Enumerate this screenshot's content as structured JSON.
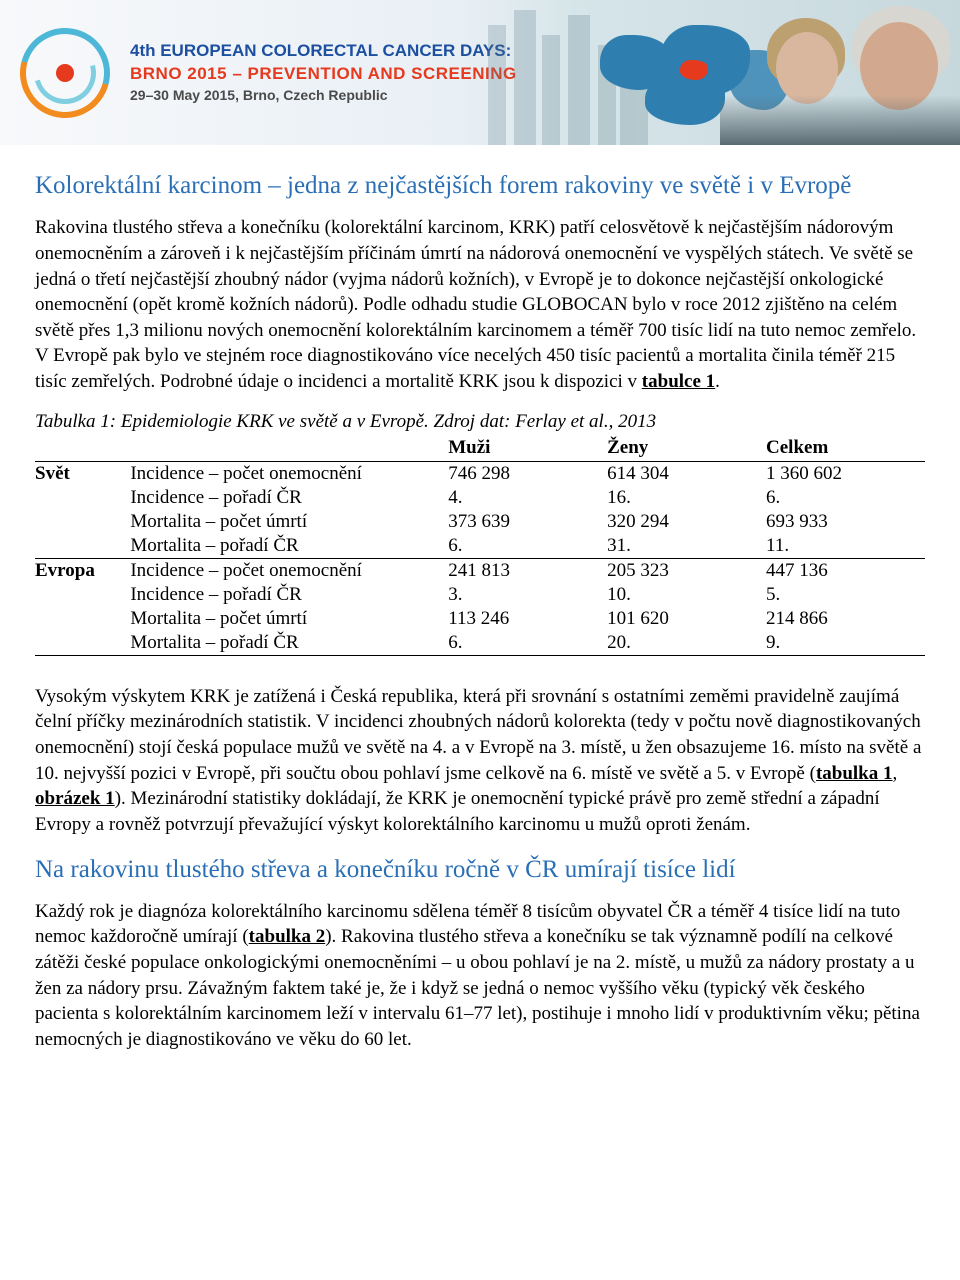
{
  "banner": {
    "line1": "4th EUROPEAN COLORECTAL CANCER DAYS:",
    "line2": "BRNO 2015 – PREVENTION AND SCREENING",
    "line3": "29–30 May 2015, Brno, Czech Republic",
    "colors": {
      "line1": "#1c4fa0",
      "line2": "#e63a1f",
      "line3": "#4a4a4a",
      "ring_teal": "#4cb7d6",
      "ring_orange": "#f28c1e",
      "ring_dot": "#e63a1f",
      "map_blue": "#2e7fb0"
    }
  },
  "section1": {
    "title": "Kolorektální karcinom – jedna z nejčastějších forem rakoviny ve světě i v Evropě",
    "para": "Rakovina tlustého střeva a konečníku (kolorektální karcinom, KRK) patří celosvětově k nejčastějším nádorovým onemocněním a zároveň i k nejčastějším příčinám úmrtí na nádorová onemocnění ve vyspělých státech. Ve světě se jedná o třetí nejčastější zhoubný nádor (vyjma nádorů kožních), v Evropě je to dokonce nejčastější onkologické onemocnění (opět kromě kožních nádorů). Podle odhadu studie GLOBOCAN bylo v roce 2012 zjištěno na celém světě přes 1,3 milionu nových onemocnění kolorektálním karcinomem a téměř 700 tisíc lidí na tuto nemoc zemřelo. V Evropě pak bylo ve stejném roce diagnostikováno více necelých 450 tisíc pacientů a mortalita činila téměř 215 tisíc zemřelých. Podrobné údaje o incidenci a mortalitě KRK jsou k dispozici v ",
    "para_link": "tabulce 1",
    "para_end": "."
  },
  "table1": {
    "caption": "Tabulka 1: Epidemiologie KRK ve světě a v Evropě. Zdroj dat: Ferlay et al., 2013",
    "headers": {
      "region": "",
      "metric": "",
      "m": "Muži",
      "z": "Ženy",
      "c": "Celkem"
    },
    "regions": [
      {
        "name": "Svět",
        "rows": [
          {
            "metric": "Incidence – počet onemocnění",
            "m": "746 298",
            "z": "614 304",
            "c": "1 360 602"
          },
          {
            "metric": "Incidence – pořadí ČR",
            "m": "4.",
            "z": "16.",
            "c": "6."
          },
          {
            "metric": "Mortalita – počet úmrtí",
            "m": "373 639",
            "z": "320 294",
            "c": "693 933"
          },
          {
            "metric": "Mortalita – pořadí ČR",
            "m": "6.",
            "z": "31.",
            "c": "11."
          }
        ]
      },
      {
        "name": "Evropa",
        "rows": [
          {
            "metric": "Incidence – počet onemocnění",
            "m": "241 813",
            "z": "205 323",
            "c": "447 136"
          },
          {
            "metric": "Incidence – pořadí ČR",
            "m": "3.",
            "z": "10.",
            "c": "5."
          },
          {
            "metric": "Mortalita – počet úmrtí",
            "m": "113 246",
            "z": "101 620",
            "c": "214 866"
          },
          {
            "metric": "Mortalita – pořadí ČR",
            "m": "6.",
            "z": "20.",
            "c": "9."
          }
        ]
      }
    ]
  },
  "para2": {
    "text_a": "Vysokým výskytem KRK je zatížená i Česká republika, která při srovnání s ostatními zeměmi pravidelně zaujímá čelní příčky mezinárodních statistik. V incidenci zhoubných nádorů kolorekta (tedy v počtu nově diagnostikovaných onemocnění) stojí česká populace mužů ve světě na 4. a v Evropě na 3. místě, u žen obsazujeme 16. místo na světě a 10. nejvyšší pozici v Evropě, při součtu obou pohlaví jsme celkově na 6. místě ve světě a 5. v Evropě (",
    "link1": "tabulka 1",
    "sep": ", ",
    "link2": "obrázek 1",
    "text_b": "). Mezinárodní statistiky dokládají, že KRK je onemocnění typické právě pro země střední a západní Evropy a rovněž potvrzují převažující výskyt kolorektálního karcinomu u mužů oproti ženám."
  },
  "section2": {
    "title": "Na rakovinu tlustého střeva a konečníku ročně v ČR umírají tisíce lidí",
    "para_a": "Každý rok je diagnóza kolorektálního karcinomu sdělena téměř 8 tisícům obyvatel ČR a téměř 4 tisíce lidí na tuto nemoc každoročně umírají (",
    "link": "tabulka 2",
    "para_b": "). Rakovina tlustého střeva a konečníku se tak významně podílí na celkové zátěži české populace onkologickými onemocněními – u obou pohlaví je na 2. místě, u mužů za nádory prostaty a u žen za nádory prsu. Závažným faktem také je, že i když se jedná o nemoc vyššího věku (typický věk českého pacienta s kolorektálním karcinomem leží v intervalu 61–77 let), postihuje i mnoho lidí v produktivním věku; pětina nemocných je diagnostikováno ve věku do 60 let."
  },
  "colors": {
    "heading": "#2a6fb5",
    "body_text": "#000000",
    "background": "#ffffff"
  }
}
